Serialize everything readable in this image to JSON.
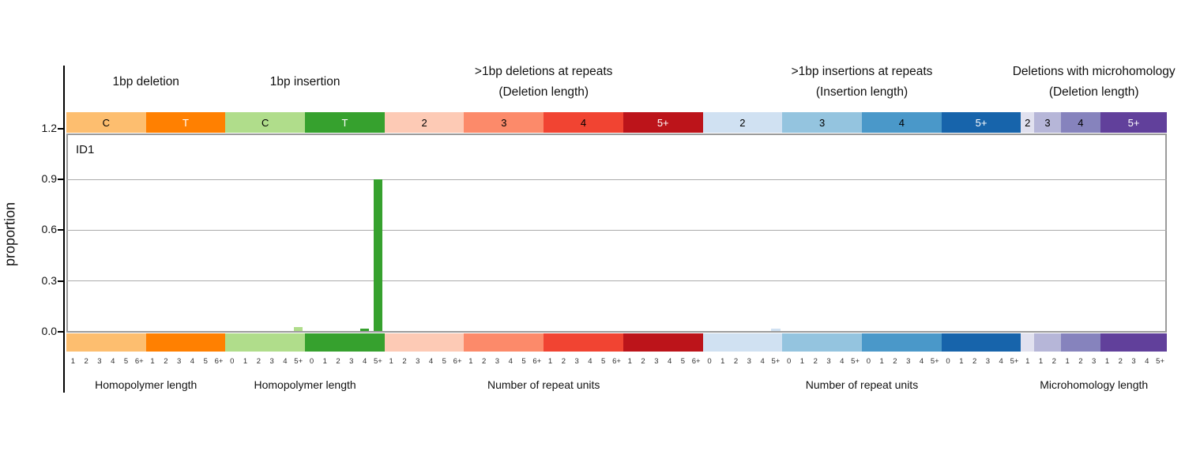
{
  "chart_data": {
    "type": "bar",
    "plot_label": "ID1",
    "ylabel": "proportion",
    "yticks": [
      "0.0",
      "0.3",
      "0.6",
      "0.9",
      "1.2"
    ],
    "ytick_values": [
      0.0,
      0.3,
      0.6,
      0.9,
      1.2
    ],
    "ylim": [
      0,
      1.17
    ],
    "grid": "horizontal",
    "legend": "none",
    "n_categories": 83,
    "sections": [
      {
        "title": "1bp deletion",
        "subtitle": "",
        "groups": [
          0,
          1
        ],
        "axis_label": "Homopolymer length"
      },
      {
        "title": "1bp insertion",
        "subtitle": "",
        "groups": [
          2,
          3
        ],
        "axis_label": "Homopolymer length"
      },
      {
        "title": ">1bp deletions at repeats",
        "subtitle": "(Deletion length)",
        "groups": [
          4,
          5,
          6,
          7
        ],
        "axis_label": "Number of repeat units"
      },
      {
        "title": ">1bp insertions at repeats",
        "subtitle": "(Insertion length)",
        "groups": [
          8,
          9,
          10,
          11
        ],
        "axis_label": "Number of repeat units"
      },
      {
        "title": "Deletions with microhomology",
        "subtitle": "(Deletion length)",
        "groups": [
          12,
          13,
          14,
          15
        ],
        "axis_label": "Microhomology length"
      }
    ],
    "groups": [
      {
        "label": "C",
        "color": "#fdbe6f",
        "label_color": "#000000",
        "ticks": [
          "1",
          "2",
          "3",
          "4",
          "5",
          "6+"
        ],
        "values": [
          0,
          0,
          0,
          0,
          0,
          0
        ]
      },
      {
        "label": "T",
        "color": "#ff8001",
        "label_color": "#ffffff",
        "ticks": [
          "1",
          "2",
          "3",
          "4",
          "5",
          "6+"
        ],
        "values": [
          0,
          0,
          0,
          0,
          0,
          0
        ]
      },
      {
        "label": "C",
        "color": "#b0dd8b",
        "label_color": "#000000",
        "ticks": [
          "0",
          "1",
          "2",
          "3",
          "4",
          "5+"
        ],
        "values": [
          0,
          0,
          0,
          0,
          0,
          0.021
        ]
      },
      {
        "label": "T",
        "color": "#36a12e",
        "label_color": "#ffffff",
        "ticks": [
          "0",
          "1",
          "2",
          "3",
          "4",
          "5+"
        ],
        "values": [
          0,
          0,
          0,
          0,
          0.016,
          0.895
        ]
      },
      {
        "label": "2",
        "color": "#fdcab5",
        "label_color": "#000000",
        "ticks": [
          "1",
          "2",
          "3",
          "4",
          "5",
          "6+"
        ],
        "values": [
          0,
          0,
          0,
          0,
          0,
          0
        ]
      },
      {
        "label": "3",
        "color": "#fc8a6a",
        "label_color": "#000000",
        "ticks": [
          "1",
          "2",
          "3",
          "4",
          "5",
          "6+"
        ],
        "values": [
          0,
          0,
          0,
          0,
          0,
          0
        ]
      },
      {
        "label": "4",
        "color": "#f14432",
        "label_color": "#000000",
        "ticks": [
          "1",
          "2",
          "3",
          "4",
          "5",
          "6+"
        ],
        "values": [
          0,
          0,
          0,
          0,
          0,
          0
        ]
      },
      {
        "label": "5+",
        "color": "#bc141a",
        "label_color": "#ffffff",
        "ticks": [
          "1",
          "2",
          "3",
          "4",
          "5",
          "6+"
        ],
        "values": [
          0,
          0,
          0,
          0,
          0,
          0
        ]
      },
      {
        "label": "2",
        "color": "#d0e1f2",
        "label_color": "#000000",
        "ticks": [
          "0",
          "1",
          "2",
          "3",
          "4",
          "5+"
        ],
        "values": [
          0,
          0,
          0,
          0,
          0,
          0.013
        ]
      },
      {
        "label": "3",
        "color": "#94c4df",
        "label_color": "#000000",
        "ticks": [
          "0",
          "1",
          "2",
          "3",
          "4",
          "5+"
        ],
        "values": [
          0,
          0,
          0,
          0,
          0,
          0
        ]
      },
      {
        "label": "4",
        "color": "#4a98c9",
        "label_color": "#000000",
        "ticks": [
          "0",
          "1",
          "2",
          "3",
          "4",
          "5+"
        ],
        "values": [
          0,
          0,
          0,
          0,
          0,
          0
        ]
      },
      {
        "label": "5+",
        "color": "#1764ab",
        "label_color": "#ffffff",
        "ticks": [
          "0",
          "1",
          "2",
          "3",
          "4",
          "5+"
        ],
        "values": [
          0,
          0,
          0,
          0,
          0,
          0
        ]
      },
      {
        "label": "2",
        "color": "#e1e1ef",
        "label_color": "#000000",
        "ticks": [
          "1"
        ],
        "values": [
          0
        ]
      },
      {
        "label": "3",
        "color": "#b6b6d8",
        "label_color": "#000000",
        "ticks": [
          "1",
          "2"
        ],
        "values": [
          0,
          0
        ]
      },
      {
        "label": "4",
        "color": "#8683bd",
        "label_color": "#000000",
        "ticks": [
          "1",
          "2",
          "3"
        ],
        "values": [
          0,
          0,
          0
        ]
      },
      {
        "label": "5+",
        "color": "#61409b",
        "label_color": "#ffffff",
        "ticks": [
          "1",
          "2",
          "3",
          "4",
          "5+"
        ],
        "values": [
          0,
          0,
          0,
          0,
          0
        ]
      }
    ]
  }
}
